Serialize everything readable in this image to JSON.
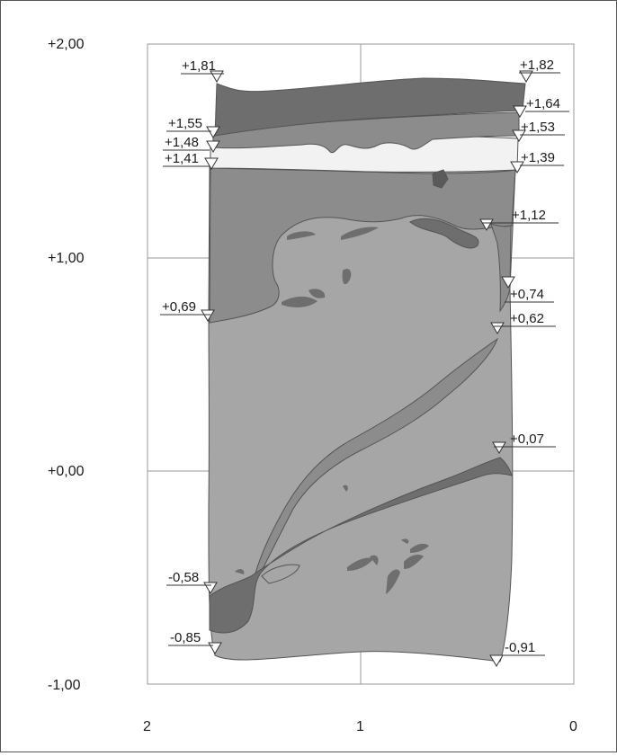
{
  "y_axis": {
    "labels": [
      "+2,00",
      "+1,00",
      "+0,00",
      "-1,00"
    ]
  },
  "x_axis": {
    "labels": [
      "2",
      "1",
      "0"
    ]
  },
  "elevation_marks": [
    {
      "text": "+1,81"
    },
    {
      "text": "+1,82"
    },
    {
      "text": "+1,64"
    },
    {
      "text": "+1,55"
    },
    {
      "text": "+1,53"
    },
    {
      "text": "+1,48"
    },
    {
      "text": "+1,41"
    },
    {
      "text": "+1,39"
    },
    {
      "text": "+1,12"
    },
    {
      "text": "+0,74"
    },
    {
      "text": "+0,69"
    },
    {
      "text": "+0,62"
    },
    {
      "text": "+0,07"
    },
    {
      "text": "-0,58"
    },
    {
      "text": "-0,85"
    },
    {
      "text": "-0,91"
    }
  ],
  "colors": {
    "grid": "#9a9a9a",
    "dark_layer": "#6e6e6e",
    "medium_layer": "#8c8c8c",
    "light_layer": "#a6a6a6",
    "light_band": "#f2f2f2",
    "outline": "#555555"
  }
}
